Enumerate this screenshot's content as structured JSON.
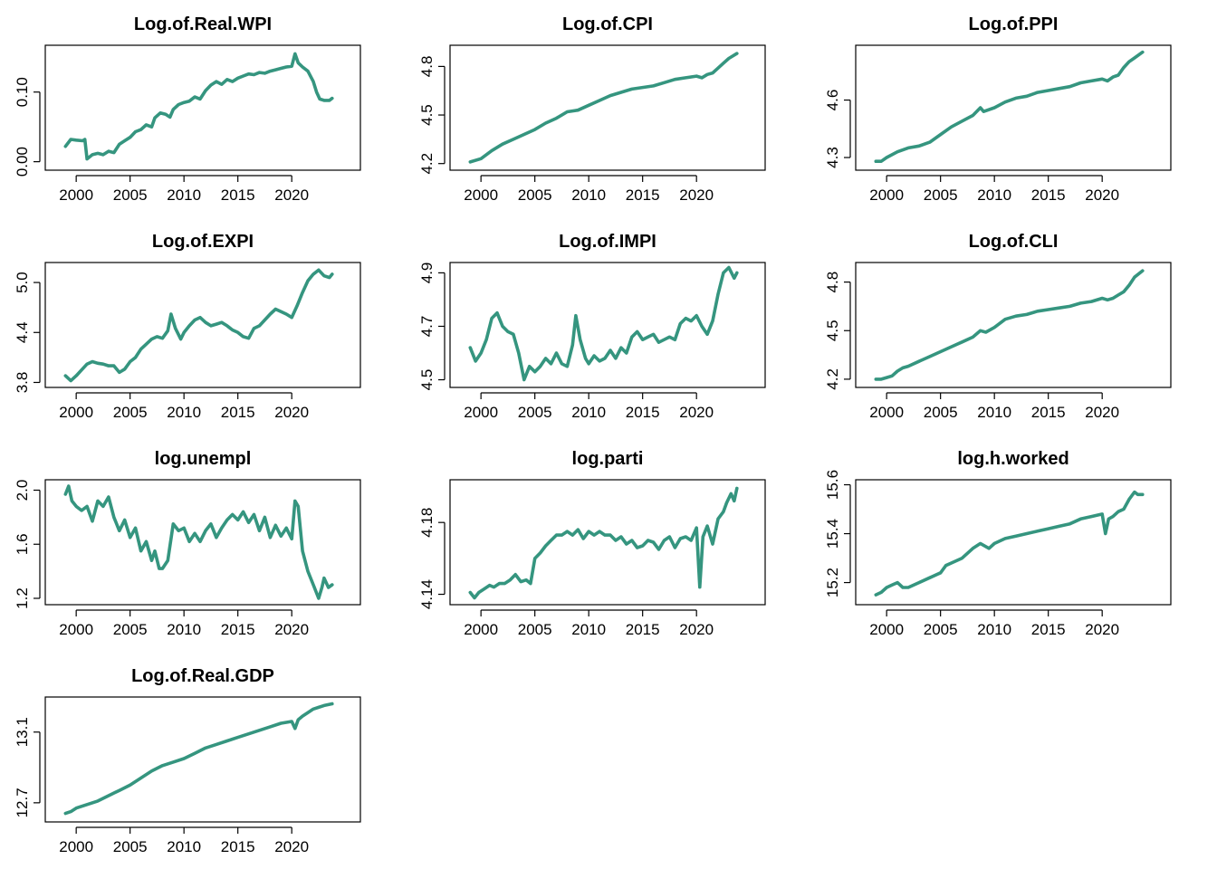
{
  "chart_data": [
    {
      "type": "line",
      "title": "Log.of.Real.WPI",
      "xticks": [
        2000,
        2005,
        2010,
        2015,
        2020
      ],
      "yticks": [
        "0.00",
        "0.10"
      ],
      "ytick_values": [
        0.0,
        0.1
      ],
      "xlim": [
        1998.3,
        2025.2
      ],
      "ylim": [
        -0.005,
        0.16
      ],
      "color": "#35957f",
      "x": [
        1999.0,
        1999.5,
        2000.0,
        2000.6,
        2000.8,
        2001.0,
        2001.5,
        2002.0,
        2002.5,
        2003.0,
        2003.5,
        2004.0,
        2004.5,
        2005.0,
        2005.5,
        2006.0,
        2006.5,
        2007.0,
        2007.3,
        2007.8,
        2008.3,
        2008.7,
        2009.0,
        2009.5,
        2010.0,
        2010.5,
        2011.0,
        2011.5,
        2012.0,
        2012.5,
        2013.0,
        2013.5,
        2014.0,
        2014.5,
        2015.0,
        2015.5,
        2016.0,
        2016.5,
        2017.0,
        2017.5,
        2018.0,
        2018.5,
        2019.0,
        2019.5,
        2020.0,
        2020.3,
        2020.6,
        2021.0,
        2021.5,
        2022.0,
        2022.3,
        2022.6,
        2023.0,
        2023.5,
        2023.75
      ],
      "y": [
        0.022,
        0.032,
        0.031,
        0.03,
        0.032,
        0.004,
        0.01,
        0.012,
        0.01,
        0.015,
        0.013,
        0.025,
        0.03,
        0.035,
        0.043,
        0.046,
        0.053,
        0.05,
        0.063,
        0.07,
        0.068,
        0.064,
        0.075,
        0.082,
        0.085,
        0.087,
        0.093,
        0.09,
        0.102,
        0.11,
        0.115,
        0.111,
        0.118,
        0.115,
        0.12,
        0.123,
        0.126,
        0.125,
        0.128,
        0.127,
        0.13,
        0.132,
        0.134,
        0.136,
        0.137,
        0.155,
        0.142,
        0.136,
        0.13,
        0.115,
        0.1,
        0.09,
        0.088,
        0.088,
        0.091
      ]
    },
    {
      "type": "line",
      "title": "Log.of.CPI",
      "xticks": [
        2000,
        2005,
        2010,
        2015,
        2020
      ],
      "yticks": [
        "4.2",
        "4.5",
        "4.8"
      ],
      "ytick_values": [
        4.2,
        4.5,
        4.8
      ],
      "xlim": [
        1998.3,
        2025.2
      ],
      "ylim": [
        4.19,
        4.9
      ],
      "color": "#35957f",
      "x": [
        1999.0,
        2000.0,
        2001.0,
        2002.0,
        2003.0,
        2004.0,
        2005.0,
        2006.0,
        2007.0,
        2008.0,
        2009.0,
        2010.0,
        2011.0,
        2012.0,
        2013.0,
        2014.0,
        2015.0,
        2016.0,
        2017.0,
        2018.0,
        2019.0,
        2020.0,
        2020.5,
        2021.0,
        2021.5,
        2022.0,
        2022.5,
        2023.0,
        2023.75
      ],
      "y": [
        4.21,
        4.23,
        4.28,
        4.32,
        4.35,
        4.38,
        4.41,
        4.45,
        4.48,
        4.52,
        4.53,
        4.56,
        4.59,
        4.62,
        4.64,
        4.66,
        4.67,
        4.68,
        4.7,
        4.72,
        4.73,
        4.74,
        4.73,
        4.75,
        4.76,
        4.79,
        4.82,
        4.85,
        4.88
      ]
    },
    {
      "type": "line",
      "title": "Log.of.PPI",
      "xticks": [
        2000,
        2005,
        2010,
        2015,
        2020
      ],
      "yticks": [
        "4.3",
        "4.6"
      ],
      "ytick_values": [
        4.3,
        4.6
      ],
      "xlim": [
        1998.3,
        2025.2
      ],
      "ylim": [
        4.26,
        4.86
      ],
      "color": "#35957f",
      "x": [
        1999.0,
        1999.5,
        2000.0,
        2001.0,
        2002.0,
        2003.0,
        2004.0,
        2005.0,
        2006.0,
        2007.0,
        2008.0,
        2008.7,
        2009.0,
        2010.0,
        2011.0,
        2012.0,
        2013.0,
        2014.0,
        2015.0,
        2016.0,
        2017.0,
        2018.0,
        2019.0,
        2020.0,
        2020.5,
        2021.0,
        2021.5,
        2022.0,
        2022.5,
        2023.0,
        2023.75
      ],
      "y": [
        4.28,
        4.28,
        4.3,
        4.33,
        4.35,
        4.36,
        4.38,
        4.42,
        4.46,
        4.49,
        4.52,
        4.56,
        4.54,
        4.56,
        4.59,
        4.61,
        4.62,
        4.64,
        4.65,
        4.66,
        4.67,
        4.69,
        4.7,
        4.71,
        4.7,
        4.72,
        4.73,
        4.77,
        4.8,
        4.82,
        4.85
      ]
    },
    {
      "type": "line",
      "title": "Log.of.EXPI",
      "xticks": [
        2000,
        2005,
        2010,
        2015,
        2020
      ],
      "yticks": [
        "3.8",
        "4.4",
        "5.0"
      ],
      "ytick_values": [
        3.8,
        4.4,
        5.0
      ],
      "xlim": [
        1998.3,
        2025.2
      ],
      "ylim": [
        3.8,
        5.18
      ],
      "color": "#35957f",
      "x": [
        1999.0,
        1999.5,
        2000.0,
        2000.5,
        2001.0,
        2001.5,
        2002.0,
        2002.5,
        2003.0,
        2003.5,
        2004.0,
        2004.5,
        2005.0,
        2005.5,
        2006.0,
        2006.5,
        2007.0,
        2007.5,
        2008.0,
        2008.5,
        2008.8,
        2009.2,
        2009.7,
        2010.0,
        2010.5,
        2011.0,
        2011.5,
        2012.0,
        2012.5,
        2013.0,
        2013.5,
        2014.0,
        2014.5,
        2015.0,
        2015.5,
        2016.0,
        2016.5,
        2017.0,
        2017.5,
        2018.0,
        2018.5,
        2019.0,
        2019.5,
        2020.0,
        2020.5,
        2021.0,
        2021.5,
        2022.0,
        2022.5,
        2023.0,
        2023.5,
        2023.75
      ],
      "y": [
        3.88,
        3.82,
        3.88,
        3.95,
        4.02,
        4.05,
        4.03,
        4.02,
        4.0,
        4.0,
        3.92,
        3.96,
        4.05,
        4.1,
        4.2,
        4.26,
        4.32,
        4.35,
        4.33,
        4.42,
        4.62,
        4.45,
        4.32,
        4.4,
        4.48,
        4.55,
        4.58,
        4.52,
        4.48,
        4.5,
        4.52,
        4.48,
        4.43,
        4.4,
        4.35,
        4.33,
        4.45,
        4.48,
        4.55,
        4.62,
        4.68,
        4.65,
        4.62,
        4.58,
        4.72,
        4.88,
        5.02,
        5.1,
        5.15,
        5.08,
        5.06,
        5.1
      ]
    },
    {
      "type": "line",
      "title": "Log.of.IMPI",
      "xticks": [
        2000,
        2005,
        2010,
        2015,
        2020
      ],
      "yticks": [
        "4.5",
        "4.7",
        "4.9"
      ],
      "ytick_values": [
        4.5,
        4.7,
        4.9
      ],
      "xlim": [
        1998.3,
        2025.2
      ],
      "ylim": [
        4.49,
        4.92
      ],
      "color": "#35957f",
      "x": [
        1999.0,
        1999.5,
        2000.0,
        2000.5,
        2001.0,
        2001.5,
        2002.0,
        2002.5,
        2003.0,
        2003.5,
        2004.0,
        2004.5,
        2005.0,
        2005.5,
        2006.0,
        2006.5,
        2007.0,
        2007.5,
        2008.0,
        2008.5,
        2008.8,
        2009.2,
        2009.7,
        2010.0,
        2010.5,
        2011.0,
        2011.5,
        2012.0,
        2012.5,
        2013.0,
        2013.5,
        2014.0,
        2014.5,
        2015.0,
        2015.5,
        2016.0,
        2016.5,
        2017.0,
        2017.5,
        2018.0,
        2018.5,
        2019.0,
        2019.5,
        2020.0,
        2020.5,
        2021.0,
        2021.5,
        2022.0,
        2022.5,
        2023.0,
        2023.5,
        2023.75
      ],
      "y": [
        4.62,
        4.57,
        4.6,
        4.65,
        4.73,
        4.75,
        4.7,
        4.68,
        4.67,
        4.6,
        4.5,
        4.55,
        4.53,
        4.55,
        4.58,
        4.56,
        4.6,
        4.56,
        4.55,
        4.63,
        4.74,
        4.65,
        4.58,
        4.56,
        4.59,
        4.57,
        4.58,
        4.61,
        4.58,
        4.62,
        4.6,
        4.66,
        4.68,
        4.65,
        4.66,
        4.67,
        4.64,
        4.65,
        4.66,
        4.65,
        4.71,
        4.73,
        4.72,
        4.74,
        4.7,
        4.67,
        4.72,
        4.82,
        4.9,
        4.92,
        4.88,
        4.9
      ]
    },
    {
      "type": "line",
      "title": "Log.of.CLI",
      "xticks": [
        2000,
        2005,
        2010,
        2015,
        2020
      ],
      "yticks": [
        "4.2",
        "4.5",
        "4.8"
      ],
      "ytick_values": [
        4.2,
        4.5,
        4.8
      ],
      "xlim": [
        1998.3,
        2025.2
      ],
      "ylim": [
        4.18,
        4.89
      ],
      "color": "#35957f",
      "x": [
        1999.0,
        1999.5,
        2000.0,
        2000.5,
        2001.0,
        2001.5,
        2002.0,
        2003.0,
        2004.0,
        2005.0,
        2006.0,
        2007.0,
        2008.0,
        2008.7,
        2009.2,
        2010.0,
        2011.0,
        2012.0,
        2013.0,
        2014.0,
        2015.0,
        2016.0,
        2017.0,
        2018.0,
        2019.0,
        2020.0,
        2020.5,
        2021.0,
        2021.5,
        2022.0,
        2022.5,
        2023.0,
        2023.75
      ],
      "y": [
        4.2,
        4.2,
        4.21,
        4.22,
        4.25,
        4.27,
        4.28,
        4.31,
        4.34,
        4.37,
        4.4,
        4.43,
        4.46,
        4.5,
        4.49,
        4.52,
        4.57,
        4.59,
        4.6,
        4.62,
        4.63,
        4.64,
        4.65,
        4.67,
        4.68,
        4.7,
        4.69,
        4.7,
        4.72,
        4.74,
        4.78,
        4.83,
        4.87
      ]
    },
    {
      "type": "line",
      "title": "log.unempl",
      "xticks": [
        2000,
        2005,
        2010,
        2015,
        2020
      ],
      "yticks": [
        "1.2",
        "1.6",
        "2.0"
      ],
      "ytick_values": [
        1.2,
        1.6,
        2.0
      ],
      "xlim": [
        1998.3,
        2025.2
      ],
      "ylim": [
        1.19,
        2.04
      ],
      "color": "#35957f",
      "x": [
        1999.0,
        1999.3,
        1999.6,
        2000.0,
        2000.5,
        2001.0,
        2001.5,
        2002.0,
        2002.5,
        2003.0,
        2003.5,
        2004.0,
        2004.5,
        2005.0,
        2005.5,
        2006.0,
        2006.5,
        2007.0,
        2007.3,
        2007.7,
        2008.0,
        2008.5,
        2009.0,
        2009.5,
        2010.0,
        2010.5,
        2011.0,
        2011.5,
        2012.0,
        2012.5,
        2013.0,
        2013.5,
        2014.0,
        2014.5,
        2015.0,
        2015.5,
        2016.0,
        2016.5,
        2017.0,
        2017.5,
        2018.0,
        2018.5,
        2019.0,
        2019.5,
        2020.0,
        2020.3,
        2020.6,
        2021.0,
        2021.5,
        2022.0,
        2022.5,
        2022.8,
        2023.0,
        2023.4,
        2023.75
      ],
      "y": [
        1.97,
        2.03,
        1.92,
        1.88,
        1.85,
        1.88,
        1.77,
        1.92,
        1.88,
        1.95,
        1.8,
        1.7,
        1.78,
        1.65,
        1.72,
        1.55,
        1.62,
        1.48,
        1.55,
        1.42,
        1.42,
        1.48,
        1.75,
        1.7,
        1.72,
        1.62,
        1.68,
        1.62,
        1.7,
        1.75,
        1.65,
        1.72,
        1.78,
        1.82,
        1.78,
        1.84,
        1.76,
        1.82,
        1.7,
        1.8,
        1.65,
        1.74,
        1.66,
        1.72,
        1.64,
        1.92,
        1.88,
        1.55,
        1.4,
        1.3,
        1.2,
        1.28,
        1.35,
        1.28,
        1.3
      ]
    },
    {
      "type": "line",
      "title": "log.parti",
      "xticks": [
        2000,
        2005,
        2010,
        2015,
        2020
      ],
      "yticks": [
        "4.14",
        "4.18"
      ],
      "ytick_values": [
        4.14,
        4.18
      ],
      "xlim": [
        1998.3,
        2025.2
      ],
      "ylim": [
        4.137,
        4.201
      ],
      "color": "#35957f",
      "x": [
        1999.0,
        1999.4,
        1999.8,
        2000.3,
        2000.8,
        2001.2,
        2001.7,
        2002.2,
        2002.7,
        2003.2,
        2003.7,
        2004.2,
        2004.6,
        2005.0,
        2005.5,
        2006.0,
        2006.5,
        2007.0,
        2007.5,
        2008.0,
        2008.5,
        2009.0,
        2009.5,
        2010.0,
        2010.5,
        2011.0,
        2011.5,
        2012.0,
        2012.5,
        2013.0,
        2013.5,
        2014.0,
        2014.5,
        2015.0,
        2015.5,
        2016.0,
        2016.5,
        2017.0,
        2017.5,
        2018.0,
        2018.5,
        2019.0,
        2019.5,
        2020.0,
        2020.3,
        2020.6,
        2021.0,
        2021.5,
        2022.0,
        2022.5,
        2022.8,
        2023.2,
        2023.5,
        2023.75
      ],
      "y": [
        4.141,
        4.138,
        4.141,
        4.143,
        4.145,
        4.144,
        4.146,
        4.146,
        4.148,
        4.151,
        4.147,
        4.148,
        4.146,
        4.16,
        4.163,
        4.167,
        4.17,
        4.173,
        4.173,
        4.175,
        4.173,
        4.176,
        4.171,
        4.175,
        4.173,
        4.175,
        4.173,
        4.173,
        4.17,
        4.172,
        4.168,
        4.17,
        4.166,
        4.167,
        4.17,
        4.169,
        4.165,
        4.17,
        4.172,
        4.166,
        4.171,
        4.172,
        4.17,
        4.177,
        4.144,
        4.172,
        4.178,
        4.168,
        4.182,
        4.186,
        4.191,
        4.196,
        4.192,
        4.199
      ]
    },
    {
      "type": "line",
      "title": "log.h.worked",
      "xticks": [
        2000,
        2005,
        2010,
        2015,
        2020
      ],
      "yticks": [
        "15.2",
        "15.4",
        "15.6"
      ],
      "ytick_values": [
        15.2,
        15.4,
        15.6
      ],
      "xlim": [
        1998.3,
        2025.2
      ],
      "ylim": [
        15.13,
        15.6
      ],
      "color": "#35957f",
      "x": [
        1999.0,
        1999.5,
        2000.0,
        2000.5,
        2001.0,
        2001.5,
        2002.0,
        2003.0,
        2004.0,
        2005.0,
        2005.5,
        2006.0,
        2007.0,
        2008.0,
        2008.7,
        2009.5,
        2010.0,
        2011.0,
        2012.0,
        2013.0,
        2014.0,
        2015.0,
        2016.0,
        2017.0,
        2018.0,
        2019.0,
        2020.0,
        2020.3,
        2020.6,
        2021.0,
        2021.5,
        2022.0,
        2022.5,
        2023.0,
        2023.3,
        2023.75
      ],
      "y": [
        15.15,
        15.16,
        15.18,
        15.19,
        15.2,
        15.18,
        15.18,
        15.2,
        15.22,
        15.24,
        15.27,
        15.28,
        15.3,
        15.34,
        15.36,
        15.34,
        15.36,
        15.38,
        15.39,
        15.4,
        15.41,
        15.42,
        15.43,
        15.44,
        15.46,
        15.47,
        15.48,
        15.4,
        15.46,
        15.47,
        15.49,
        15.5,
        15.54,
        15.57,
        15.56,
        15.56
      ]
    },
    {
      "type": "line",
      "title": "Log.of.Real.GDP",
      "xticks": [
        2000,
        2005,
        2010,
        2015,
        2020
      ],
      "yticks": [
        "12.7",
        "13.1"
      ],
      "ytick_values": [
        12.7,
        13.1
      ],
      "xlim": [
        1998.3,
        2025.2
      ],
      "ylim": [
        12.62,
        13.27
      ],
      "color": "#35957f",
      "x": [
        1999.0,
        1999.5,
        2000.0,
        2001.0,
        2002.0,
        2003.0,
        2004.0,
        2005.0,
        2006.0,
        2007.0,
        2008.0,
        2009.0,
        2010.0,
        2011.0,
        2012.0,
        2013.0,
        2014.0,
        2015.0,
        2016.0,
        2017.0,
        2018.0,
        2019.0,
        2020.0,
        2020.3,
        2020.6,
        2021.0,
        2021.5,
        2022.0,
        2022.5,
        2023.0,
        2023.75
      ],
      "y": [
        12.64,
        12.65,
        12.67,
        12.69,
        12.71,
        12.74,
        12.77,
        12.8,
        12.84,
        12.88,
        12.91,
        12.93,
        12.95,
        12.98,
        13.01,
        13.03,
        13.05,
        13.07,
        13.09,
        13.11,
        13.13,
        13.15,
        13.16,
        13.12,
        13.17,
        13.19,
        13.21,
        13.23,
        13.24,
        13.25,
        13.26
      ]
    }
  ]
}
